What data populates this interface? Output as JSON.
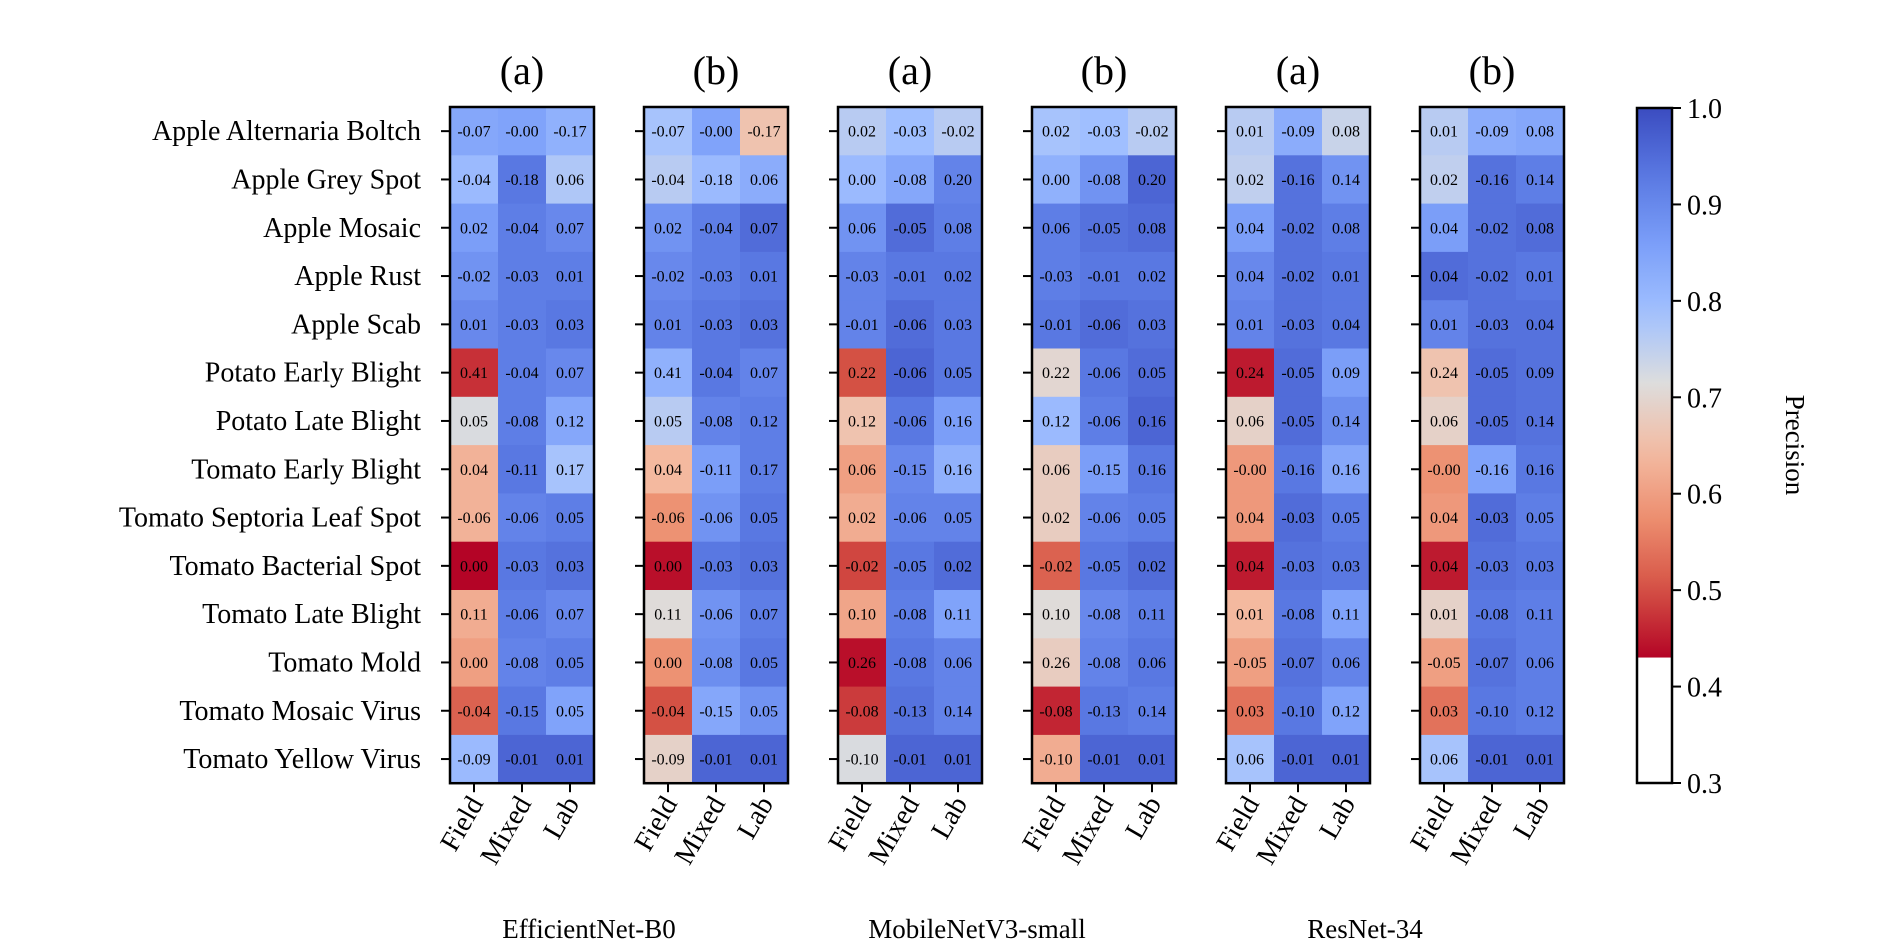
{
  "chart_data": {
    "type": "heatmap",
    "rows": [
      "Apple Alternaria Boltch",
      "Apple Grey Spot",
      "Apple Mosaic",
      "Apple Rust",
      "Apple Scab",
      "Potato Early Blight",
      "Potato Late Blight",
      "Tomato Early Blight",
      "Tomato Septoria Leaf Spot",
      "Tomato Bacterial Spot",
      "Tomato Late Blight",
      "Tomato Mold",
      "Tomato Mosaic Virus",
      "Tomato Yellow Virus"
    ],
    "columns": [
      "Field",
      "Mixed",
      "Lab"
    ],
    "colorbar": {
      "label": "Precision",
      "range": [
        0.3,
        1.0
      ],
      "ticks": [
        "1.0",
        "0.9",
        "0.8",
        "0.7",
        "0.6",
        "0.5",
        "0.4",
        "0.3"
      ]
    },
    "models": [
      "EfficientNet-B0",
      "MobileNetV3-small",
      "ResNet-34"
    ],
    "panels": [
      {
        "title": "(a)",
        "model_index": 0,
        "labels": [
          [
            "-0.07",
            "-0.00",
            "-0.17"
          ],
          [
            "-0.04",
            "-0.18",
            "0.06"
          ],
          [
            "0.02",
            "-0.04",
            "0.07"
          ],
          [
            "-0.02",
            "-0.03",
            "0.01"
          ],
          [
            "0.01",
            "-0.03",
            "0.03"
          ],
          [
            "0.41",
            "-0.04",
            "0.07"
          ],
          [
            "0.05",
            "-0.08",
            "0.12"
          ],
          [
            "0.04",
            "-0.11",
            "0.17"
          ],
          [
            "-0.06",
            "-0.06",
            "0.05"
          ],
          [
            "0.00",
            "-0.03",
            "0.03"
          ],
          [
            "0.11",
            "-0.06",
            "0.07"
          ],
          [
            "0.00",
            "-0.08",
            "0.05"
          ],
          [
            "-0.04",
            "-0.15",
            "0.05"
          ],
          [
            "-0.09",
            "-0.01",
            "0.01"
          ]
        ],
        "values": [
          [
            0.84,
            0.85,
            0.82
          ],
          [
            0.8,
            0.93,
            0.77
          ],
          [
            0.86,
            0.92,
            0.9
          ],
          [
            0.88,
            0.92,
            0.92
          ],
          [
            0.9,
            0.92,
            0.93
          ],
          [
            0.47,
            0.92,
            0.9
          ],
          [
            0.72,
            0.92,
            0.84
          ],
          [
            0.63,
            0.93,
            0.78
          ],
          [
            0.63,
            0.91,
            0.92
          ],
          [
            0.43,
            0.93,
            0.94
          ],
          [
            0.62,
            0.92,
            0.9
          ],
          [
            0.6,
            0.91,
            0.92
          ],
          [
            0.52,
            0.93,
            0.85
          ],
          [
            0.8,
            0.96,
            0.96
          ]
        ]
      },
      {
        "title": "(b)",
        "model_index": 0,
        "labels": [
          [
            "-0.07",
            "-0.00",
            "-0.17"
          ],
          [
            "-0.04",
            "-0.18",
            "0.06"
          ],
          [
            "0.02",
            "-0.04",
            "0.07"
          ],
          [
            "-0.02",
            "-0.03",
            "0.01"
          ],
          [
            "0.01",
            "-0.03",
            "0.03"
          ],
          [
            "0.41",
            "-0.04",
            "0.07"
          ],
          [
            "0.05",
            "-0.08",
            "0.12"
          ],
          [
            "0.04",
            "-0.11",
            "0.17"
          ],
          [
            "-0.06",
            "-0.06",
            "0.05"
          ],
          [
            "0.00",
            "-0.03",
            "0.03"
          ],
          [
            "0.11",
            "-0.06",
            "0.07"
          ],
          [
            "0.00",
            "-0.08",
            "0.05"
          ],
          [
            "-0.04",
            "-0.15",
            "0.05"
          ],
          [
            "-0.09",
            "-0.01",
            "0.01"
          ]
        ],
        "values": [
          [
            0.78,
            0.85,
            0.66
          ],
          [
            0.76,
            0.8,
            0.83
          ],
          [
            0.88,
            0.92,
            0.95
          ],
          [
            0.9,
            0.92,
            0.93
          ],
          [
            0.91,
            0.93,
            0.94
          ],
          [
            0.82,
            0.93,
            0.91
          ],
          [
            0.76,
            0.91,
            0.92
          ],
          [
            0.64,
            0.86,
            0.92
          ],
          [
            0.58,
            0.88,
            0.93
          ],
          [
            0.44,
            0.93,
            0.94
          ],
          [
            0.71,
            0.88,
            0.92
          ],
          [
            0.58,
            0.89,
            0.93
          ],
          [
            0.5,
            0.84,
            0.88
          ],
          [
            0.69,
            0.96,
            0.96
          ]
        ]
      },
      {
        "title": "(a)",
        "model_index": 1,
        "labels": [
          [
            "0.02",
            "-0.03",
            "-0.02"
          ],
          [
            "0.00",
            "-0.08",
            "0.20"
          ],
          [
            "0.06",
            "-0.05",
            "0.08"
          ],
          [
            "-0.03",
            "-0.01",
            "0.02"
          ],
          [
            "-0.01",
            "-0.06",
            "0.03"
          ],
          [
            "0.22",
            "-0.06",
            "0.05"
          ],
          [
            "0.12",
            "-0.06",
            "0.16"
          ],
          [
            "0.06",
            "-0.15",
            "0.16"
          ],
          [
            "0.02",
            "-0.06",
            "0.05"
          ],
          [
            "-0.02",
            "-0.05",
            "0.02"
          ],
          [
            "0.10",
            "-0.08",
            "0.11"
          ],
          [
            "0.26",
            "-0.08",
            "0.06"
          ],
          [
            "-0.08",
            "-0.13",
            "0.14"
          ],
          [
            "-0.10",
            "-0.01",
            "0.01"
          ]
        ],
        "values": [
          [
            0.76,
            0.79,
            0.76
          ],
          [
            0.8,
            0.84,
            0.91
          ],
          [
            0.88,
            0.95,
            0.92
          ],
          [
            0.91,
            0.93,
            0.93
          ],
          [
            0.91,
            0.95,
            0.93
          ],
          [
            0.5,
            0.96,
            0.93
          ],
          [
            0.66,
            0.93,
            0.86
          ],
          [
            0.6,
            0.9,
            0.82
          ],
          [
            0.62,
            0.91,
            0.91
          ],
          [
            0.49,
            0.93,
            0.95
          ],
          [
            0.61,
            0.92,
            0.85
          ],
          [
            0.44,
            0.93,
            0.91
          ],
          [
            0.48,
            0.94,
            0.91
          ],
          [
            0.72,
            0.96,
            0.96
          ]
        ]
      },
      {
        "title": "(b)",
        "model_index": 1,
        "labels": [
          [
            "0.02",
            "-0.03",
            "-0.02"
          ],
          [
            "0.00",
            "-0.08",
            "0.20"
          ],
          [
            "0.06",
            "-0.05",
            "0.08"
          ],
          [
            "-0.03",
            "-0.01",
            "0.02"
          ],
          [
            "-0.01",
            "-0.06",
            "0.03"
          ],
          [
            "0.22",
            "-0.06",
            "0.05"
          ],
          [
            "0.12",
            "-0.06",
            "0.16"
          ],
          [
            "0.06",
            "-0.15",
            "0.16"
          ],
          [
            "0.02",
            "-0.06",
            "0.05"
          ],
          [
            "-0.02",
            "-0.05",
            "0.02"
          ],
          [
            "0.10",
            "-0.08",
            "0.11"
          ],
          [
            "0.26",
            "-0.08",
            "0.06"
          ],
          [
            "-0.08",
            "-0.13",
            "0.14"
          ],
          [
            "-0.10",
            "-0.01",
            "0.01"
          ]
        ],
        "values": [
          [
            0.78,
            0.79,
            0.76
          ],
          [
            0.82,
            0.88,
            0.96
          ],
          [
            0.92,
            0.94,
            0.95
          ],
          [
            0.92,
            0.93,
            0.93
          ],
          [
            0.93,
            0.95,
            0.94
          ],
          [
            0.7,
            0.93,
            0.95
          ],
          [
            0.8,
            0.92,
            0.96
          ],
          [
            0.68,
            0.86,
            0.93
          ],
          [
            0.68,
            0.91,
            0.92
          ],
          [
            0.52,
            0.93,
            0.95
          ],
          [
            0.71,
            0.9,
            0.92
          ],
          [
            0.68,
            0.91,
            0.93
          ],
          [
            0.46,
            0.93,
            0.92
          ],
          [
            0.62,
            0.96,
            0.96
          ]
        ]
      },
      {
        "title": "(a)",
        "model_index": 2,
        "labels": [
          [
            "0.01",
            "-0.09",
            "0.08"
          ],
          [
            "0.02",
            "-0.16",
            "0.14"
          ],
          [
            "0.04",
            "-0.02",
            "0.08"
          ],
          [
            "0.04",
            "-0.02",
            "0.01"
          ],
          [
            "0.01",
            "-0.03",
            "0.04"
          ],
          [
            "0.24",
            "-0.05",
            "0.09"
          ],
          [
            "0.06",
            "-0.05",
            "0.14"
          ],
          [
            "-0.00",
            "-0.16",
            "0.16"
          ],
          [
            "0.04",
            "-0.03",
            "0.05"
          ],
          [
            "0.04",
            "-0.03",
            "0.03"
          ],
          [
            "0.01",
            "-0.08",
            "0.11"
          ],
          [
            "-0.05",
            "-0.07",
            "0.06"
          ],
          [
            "0.03",
            "-0.10",
            "0.12"
          ],
          [
            "0.06",
            "-0.01",
            "0.01"
          ]
        ],
        "values": [
          [
            0.76,
            0.83,
            0.74
          ],
          [
            0.75,
            0.94,
            0.88
          ],
          [
            0.86,
            0.94,
            0.92
          ],
          [
            0.9,
            0.94,
            0.93
          ],
          [
            0.91,
            0.94,
            0.93
          ],
          [
            0.45,
            0.95,
            0.86
          ],
          [
            0.69,
            0.95,
            0.89
          ],
          [
            0.59,
            0.93,
            0.84
          ],
          [
            0.59,
            0.95,
            0.92
          ],
          [
            0.45,
            0.94,
            0.93
          ],
          [
            0.64,
            0.93,
            0.85
          ],
          [
            0.6,
            0.94,
            0.91
          ],
          [
            0.54,
            0.93,
            0.85
          ],
          [
            0.78,
            0.96,
            0.96
          ]
        ]
      },
      {
        "title": "(b)",
        "model_index": 2,
        "labels": [
          [
            "0.01",
            "-0.09",
            "0.08"
          ],
          [
            "0.02",
            "-0.16",
            "0.14"
          ],
          [
            "0.04",
            "-0.02",
            "0.08"
          ],
          [
            "0.04",
            "-0.02",
            "0.01"
          ],
          [
            "0.01",
            "-0.03",
            "0.04"
          ],
          [
            "0.24",
            "-0.05",
            "0.09"
          ],
          [
            "0.06",
            "-0.05",
            "0.14"
          ],
          [
            "-0.00",
            "-0.16",
            "0.16"
          ],
          [
            "0.04",
            "-0.03",
            "0.05"
          ],
          [
            "0.04",
            "-0.03",
            "0.03"
          ],
          [
            "0.01",
            "-0.08",
            "0.11"
          ],
          [
            "-0.05",
            "-0.07",
            "0.06"
          ],
          [
            "0.03",
            "-0.10",
            "0.12"
          ],
          [
            "0.06",
            "-0.01",
            "0.01"
          ]
        ],
        "values": [
          [
            0.76,
            0.83,
            0.84
          ],
          [
            0.75,
            0.94,
            0.92
          ],
          [
            0.86,
            0.94,
            0.95
          ],
          [
            0.95,
            0.94,
            0.93
          ],
          [
            0.91,
            0.94,
            0.94
          ],
          [
            0.66,
            0.95,
            0.94
          ],
          [
            0.69,
            0.95,
            0.94
          ],
          [
            0.58,
            0.85,
            0.93
          ],
          [
            0.59,
            0.95,
            0.92
          ],
          [
            0.45,
            0.94,
            0.93
          ],
          [
            0.69,
            0.93,
            0.92
          ],
          [
            0.6,
            0.94,
            0.92
          ],
          [
            0.54,
            0.93,
            0.92
          ],
          [
            0.78,
            0.96,
            0.96
          ]
        ]
      }
    ]
  }
}
